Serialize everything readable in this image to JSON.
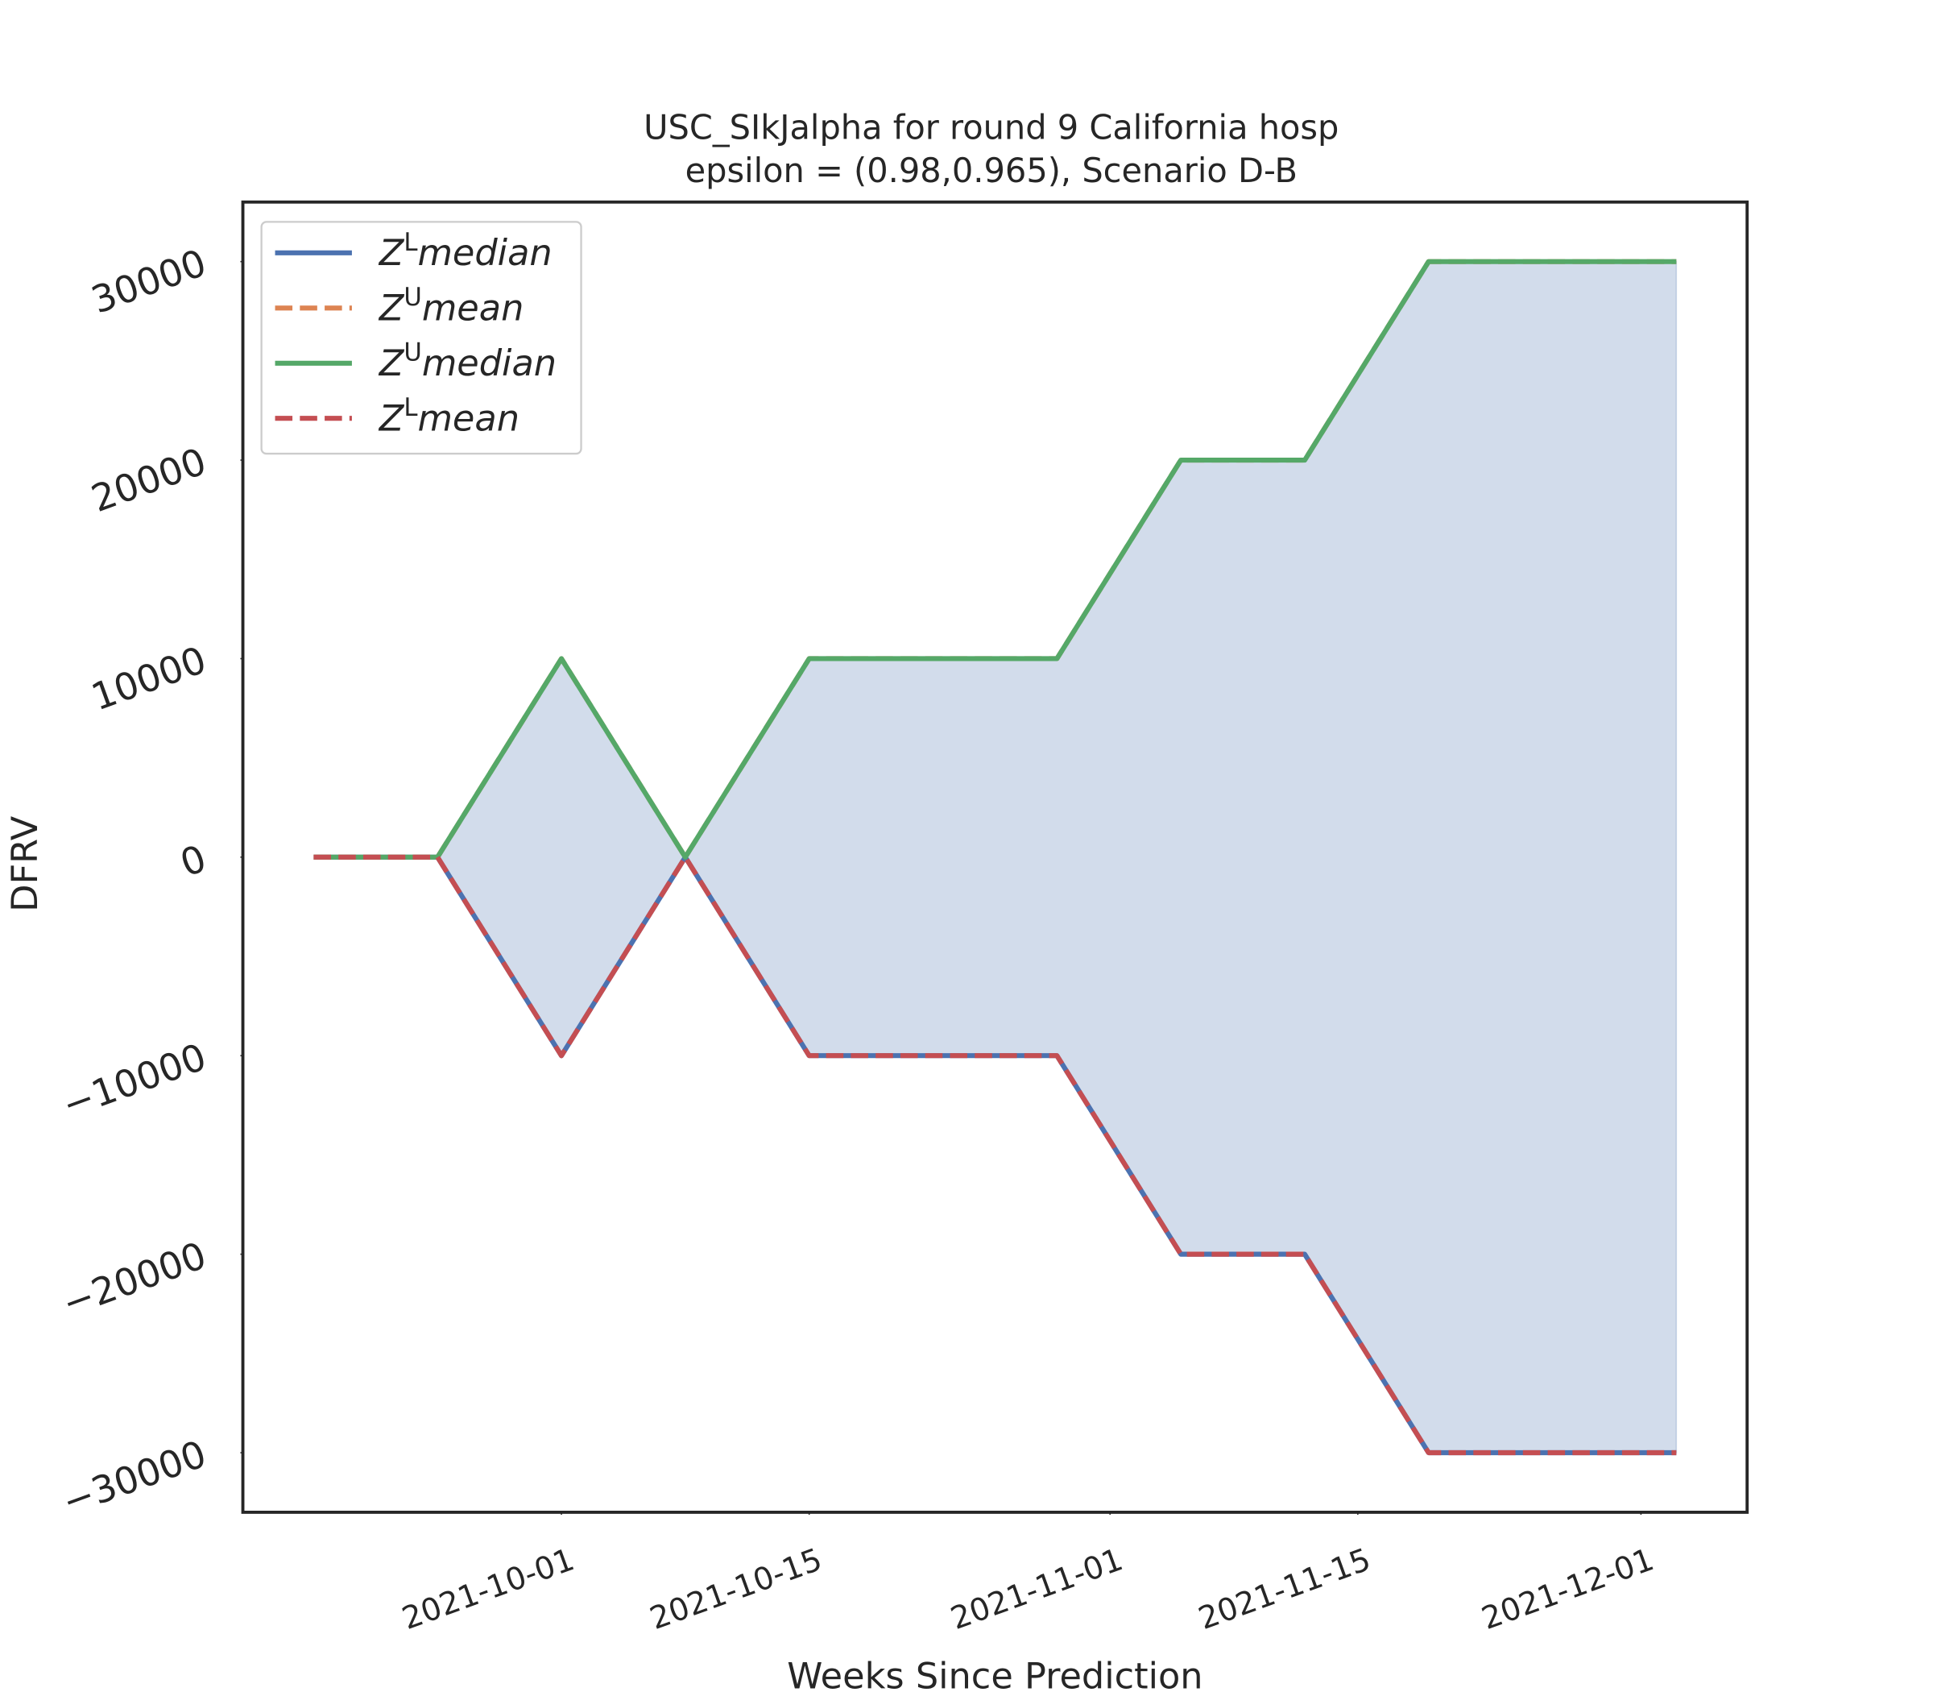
{
  "chart_data": {
    "type": "line",
    "title": "USC_SIkJalpha for round 9 California  hosp",
    "subtitle": "epsilon = (0.98,0.965), Scenario D-B",
    "xlabel": "Weeks Since Prediction",
    "ylabel": "DFRV",
    "x": [
      "2021-09-17",
      "2021-09-24",
      "2021-10-01",
      "2021-10-08",
      "2021-10-15",
      "2021-10-22",
      "2021-10-29",
      "2021-11-05",
      "2021-11-12",
      "2021-11-19",
      "2021-11-26",
      "2021-12-03"
    ],
    "series": [
      {
        "name": "ZLmedian",
        "color": "#4c72b0",
        "dash": false,
        "values": [
          0,
          0,
          -10000,
          0,
          -10000,
          -10000,
          -10000,
          -20000,
          -20000,
          -30000,
          -30000,
          -30000
        ]
      },
      {
        "name": "ZUmean",
        "color": "#dd8452",
        "dash": true,
        "values": [
          0,
          0,
          10000,
          0,
          10000,
          10000,
          10000,
          20000,
          20000,
          30000,
          30000,
          30000
        ]
      },
      {
        "name": "ZUmedian",
        "color": "#55a868",
        "dash": false,
        "values": [
          0,
          0,
          10000,
          0,
          10000,
          10000,
          10000,
          20000,
          20000,
          30000,
          30000,
          30000
        ]
      },
      {
        "name": "ZLmean",
        "color": "#c44e52",
        "dash": true,
        "values": [
          0,
          0,
          -10000,
          0,
          -10000,
          -10000,
          -10000,
          -20000,
          -20000,
          -30000,
          -30000,
          -30000
        ]
      }
    ],
    "fill_color": "#4c72b0",
    "xlim": [
      "2021-09-13",
      "2021-12-07"
    ],
    "xticks": [
      "2021-10-01",
      "2021-10-15",
      "2021-11-01",
      "2021-11-15",
      "2021-12-01"
    ],
    "ylim": [
      -33000,
      33000
    ],
    "yticks": [
      -30000,
      -20000,
      -10000,
      0,
      10000,
      20000,
      30000
    ],
    "yticklabels": [
      "−30000",
      "−20000",
      "−10000",
      "0",
      "10000",
      "20000",
      "30000"
    ],
    "legend": "upper left",
    "grid": false
  }
}
